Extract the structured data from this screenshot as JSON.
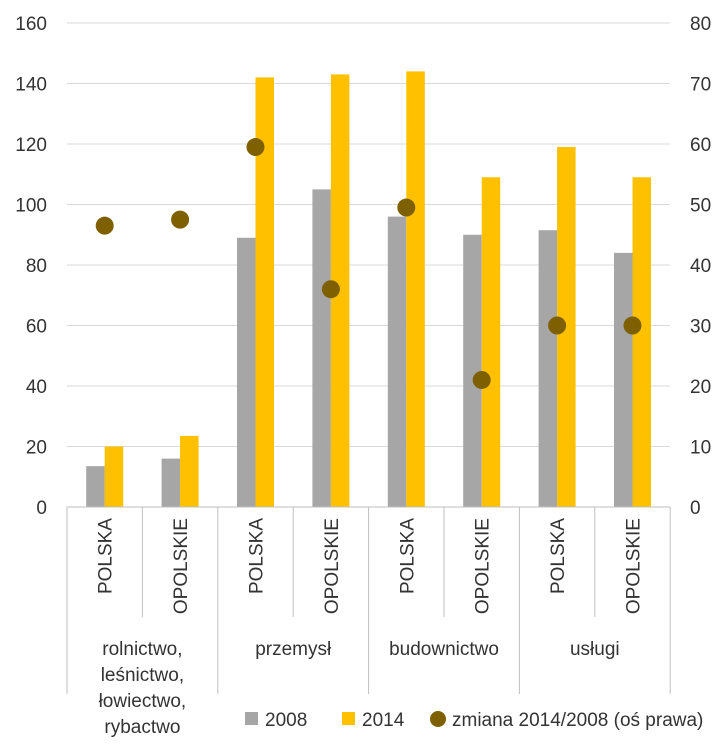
{
  "chart_data": {
    "type": "bar",
    "groups": [
      {
        "label": "rolnictwo,\nleśnictwo,\nłowiectwo,\nrybactwo",
        "label_lines": [
          "rolnictwo,",
          "leśnictwo,",
          "łowiectwo,",
          "rybactwo"
        ]
      },
      {
        "label": "przemysł",
        "label_lines": [
          "przemysł"
        ]
      },
      {
        "label": "budownictwo",
        "label_lines": [
          "budownictwo"
        ]
      },
      {
        "label": "usługi",
        "label_lines": [
          "usługi"
        ]
      }
    ],
    "categories": [
      "POLSKA",
      "OPOLSKIE",
      "POLSKA",
      "OPOLSKIE",
      "POLSKA",
      "OPOLSKIE",
      "POLSKA",
      "OPOLSKIE"
    ],
    "series": [
      {
        "name": "2008",
        "kind": "bar",
        "axis": "left",
        "color": "#a6a6a6",
        "values": [
          13.5,
          16,
          89,
          105,
          96,
          90,
          91.5,
          84
        ]
      },
      {
        "name": "2014",
        "kind": "bar",
        "axis": "left",
        "color": "#ffc000",
        "values": [
          20,
          23.5,
          142,
          143,
          144,
          109,
          119,
          109
        ]
      },
      {
        "name": "zmiana 2014/2008 (oś prawa)",
        "kind": "scatter",
        "axis": "right",
        "color": "#7f6000",
        "values": [
          46.5,
          47.5,
          59.5,
          36,
          49.5,
          21,
          30,
          30
        ]
      }
    ],
    "y_left": {
      "min": 0,
      "max": 160,
      "ticks": [
        0,
        20,
        40,
        60,
        80,
        100,
        120,
        140,
        160
      ]
    },
    "y_right": {
      "min": 0,
      "max": 80,
      "ticks": [
        0,
        10,
        20,
        30,
        40,
        50,
        60,
        70,
        80
      ]
    },
    "grid": true,
    "legend_position": "bottom"
  }
}
